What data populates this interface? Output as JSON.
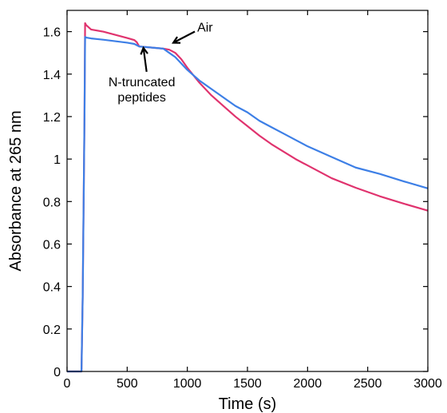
{
  "chart_data": {
    "type": "line",
    "title": "",
    "xlabel": "Time (s)",
    "ylabel": "Absorbance at 265 nm",
    "xlim": [
      0,
      3000
    ],
    "ylim": [
      0,
      1.7
    ],
    "xticks": [
      0,
      500,
      1000,
      1500,
      2000,
      2500,
      3000
    ],
    "yticks": [
      0,
      0.2,
      0.4,
      0.6,
      0.8,
      1,
      1.2,
      1.4,
      1.6
    ],
    "xtick_labels": [
      "0",
      "500",
      "1000",
      "1500",
      "2000",
      "2500",
      "3000"
    ],
    "ytick_labels": [
      "0",
      "0.2",
      "0.4",
      "0.6",
      "0.8",
      "1",
      "1.2",
      "1.4",
      "1.6"
    ],
    "grid": false,
    "legend": "none",
    "series": [
      {
        "color": "#e0336e",
        "x": [
          0,
          100,
          120,
          130,
          145,
          150,
          160,
          200,
          300,
          400,
          500,
          560,
          580,
          600,
          700,
          800,
          850,
          900,
          950,
          1000,
          1100,
          1200,
          1300,
          1400,
          1500,
          1600,
          1700,
          1800,
          1900,
          2000,
          2200,
          2400,
          2600,
          2800,
          3000
        ],
        "y": [
          0,
          0,
          0,
          0.35,
          1.2,
          1.64,
          1.63,
          1.61,
          1.6,
          1.585,
          1.57,
          1.56,
          1.55,
          1.53,
          1.525,
          1.52,
          1.515,
          1.5,
          1.47,
          1.43,
          1.36,
          1.3,
          1.25,
          1.2,
          1.155,
          1.11,
          1.07,
          1.035,
          1.0,
          0.97,
          0.91,
          0.865,
          0.825,
          0.79,
          0.757
        ]
      },
      {
        "color": "#3d7fe6",
        "x": [
          0,
          100,
          120,
          130,
          145,
          150,
          160,
          200,
          300,
          400,
          500,
          560,
          580,
          600,
          700,
          800,
          850,
          900,
          950,
          1000,
          1100,
          1200,
          1300,
          1400,
          1500,
          1600,
          1700,
          1800,
          1900,
          2000,
          2200,
          2400,
          2600,
          2800,
          3000
        ],
        "y": [
          0,
          0,
          0,
          0.35,
          1.2,
          1.575,
          1.572,
          1.568,
          1.562,
          1.555,
          1.548,
          1.542,
          1.536,
          1.53,
          1.525,
          1.52,
          1.5,
          1.48,
          1.45,
          1.42,
          1.37,
          1.33,
          1.29,
          1.25,
          1.22,
          1.18,
          1.15,
          1.12,
          1.09,
          1.06,
          1.01,
          0.96,
          0.93,
          0.895,
          0.862
        ]
      }
    ],
    "annotations": [
      {
        "text": "Air",
        "point_x": 870,
        "point_y": 1.525
      },
      {
        "text": "N-truncated",
        "point_x": 635,
        "point_y": 1.535
      },
      {
        "text": "peptides"
      }
    ]
  }
}
